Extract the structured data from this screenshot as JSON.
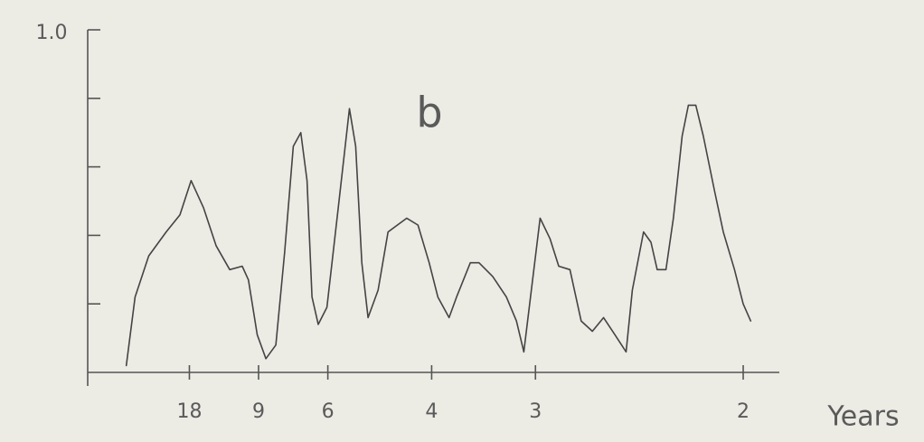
{
  "chart_data": {
    "type": "line",
    "panel_label": "b",
    "x_label": "Years",
    "xlim": [
      -0.026,
      0.529
    ],
    "xticks": [
      {
        "value": 0.0556,
        "label": "18"
      },
      {
        "value": 0.1111,
        "label": "9"
      },
      {
        "value": 0.1667,
        "label": "6"
      },
      {
        "value": 0.25,
        "label": "4"
      },
      {
        "value": 0.3333,
        "label": "3"
      },
      {
        "value": 0.5,
        "label": "2"
      }
    ],
    "ylim": [
      0,
      1.0
    ],
    "yticks": [
      0.2,
      0.4,
      0.6,
      0.8,
      {
        "value": 1.0,
        "label": "1.0"
      }
    ],
    "color": "#444444",
    "x": [
      0.005,
      0.012,
      0.023,
      0.037,
      0.048,
      0.057,
      0.067,
      0.077,
      0.088,
      0.098,
      0.103,
      0.11,
      0.117,
      0.125,
      0.132,
      0.139,
      0.145,
      0.15,
      0.154,
      0.159,
      0.166,
      0.175,
      0.184,
      0.189,
      0.194,
      0.199,
      0.207,
      0.215,
      0.23,
      0.239,
      0.248,
      0.255,
      0.264,
      0.27,
      0.281,
      0.288,
      0.299,
      0.31,
      0.318,
      0.324,
      0.33,
      0.337,
      0.345,
      0.352,
      0.361,
      0.37,
      0.379,
      0.388,
      0.397,
      0.406,
      0.411,
      0.42,
      0.426,
      0.431,
      0.438,
      0.444,
      0.451,
      0.456,
      0.462,
      0.468,
      0.477,
      0.484,
      0.493,
      0.5,
      0.506
    ],
    "values": [
      0.02,
      0.22,
      0.34,
      0.41,
      0.46,
      0.56,
      0.48,
      0.37,
      0.3,
      0.31,
      0.27,
      0.11,
      0.04,
      0.08,
      0.35,
      0.66,
      0.7,
      0.56,
      0.22,
      0.14,
      0.19,
      0.48,
      0.77,
      0.66,
      0.32,
      0.16,
      0.24,
      0.41,
      0.45,
      0.43,
      0.32,
      0.22,
      0.16,
      0.22,
      0.32,
      0.32,
      0.28,
      0.22,
      0.15,
      0.06,
      0.24,
      0.45,
      0.39,
      0.31,
      0.3,
      0.15,
      0.12,
      0.16,
      0.11,
      0.06,
      0.24,
      0.41,
      0.38,
      0.3,
      0.3,
      0.45,
      0.69,
      0.78,
      0.78,
      0.69,
      0.53,
      0.41,
      0.3,
      0.2,
      0.15
    ]
  }
}
